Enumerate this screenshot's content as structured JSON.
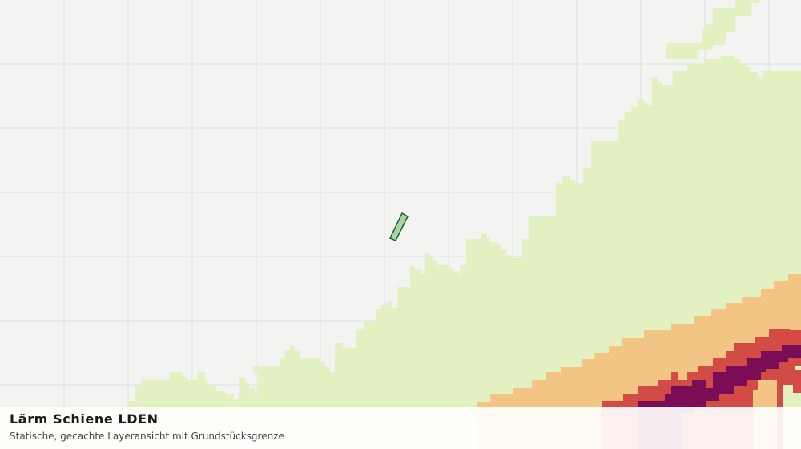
{
  "map": {
    "layer_name": "Lärm Schiene LDEN",
    "basemap_color": "#f3f4f2",
    "grid_color": "#dedfdd",
    "noise_classes": [
      {
        "name": "class-1",
        "color": "#e2f0c2"
      },
      {
        "name": "class-2",
        "color": "#f2c584"
      },
      {
        "name": "class-3",
        "color": "#d24b45"
      },
      {
        "name": "class-4",
        "color": "#7b0d57"
      }
    ],
    "parcel": {
      "fill": "#a6d7a3",
      "stroke": "#1f4d2b"
    }
  },
  "legend": {
    "title": "Lärm Schiene LDEN",
    "subtitle": "Statische, gecachte Layeransicht mit Grundstücksgrenze"
  }
}
